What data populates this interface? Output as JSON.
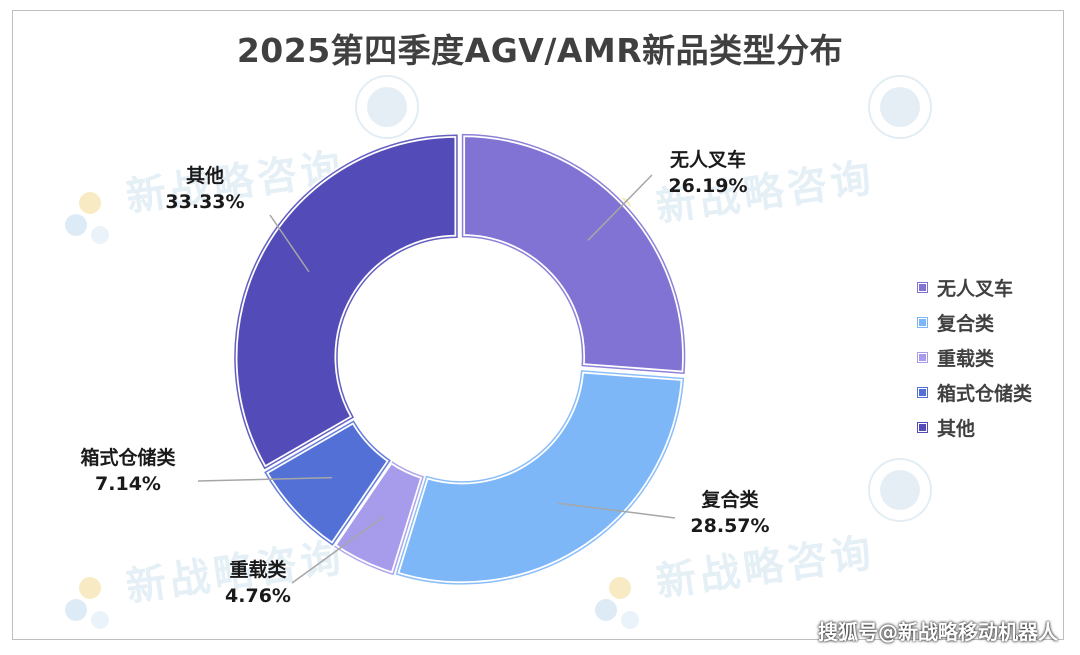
{
  "chart_data": {
    "type": "pie",
    "variant": "donut",
    "title": "2025第四季度AGV/AMR新品类型分布",
    "slices": [
      {
        "name": "无人叉车",
        "value": 26.19,
        "label": "26.19%",
        "color": "#8173d4"
      },
      {
        "name": "复合类",
        "value": 28.57,
        "label": "28.57%",
        "color": "#7db7f8"
      },
      {
        "name": "重载类",
        "value": 4.76,
        "label": "4.76%",
        "color": "#a79bec"
      },
      {
        "name": "箱式仓储类",
        "value": 7.14,
        "label": "7.14%",
        "color": "#5370d6"
      },
      {
        "name": "其他",
        "value": 33.33,
        "label": "33.33%",
        "color": "#534cb8"
      }
    ],
    "legend_placement": "right",
    "grid": false
  },
  "credit": "搜狐号@新战略移动机器人"
}
